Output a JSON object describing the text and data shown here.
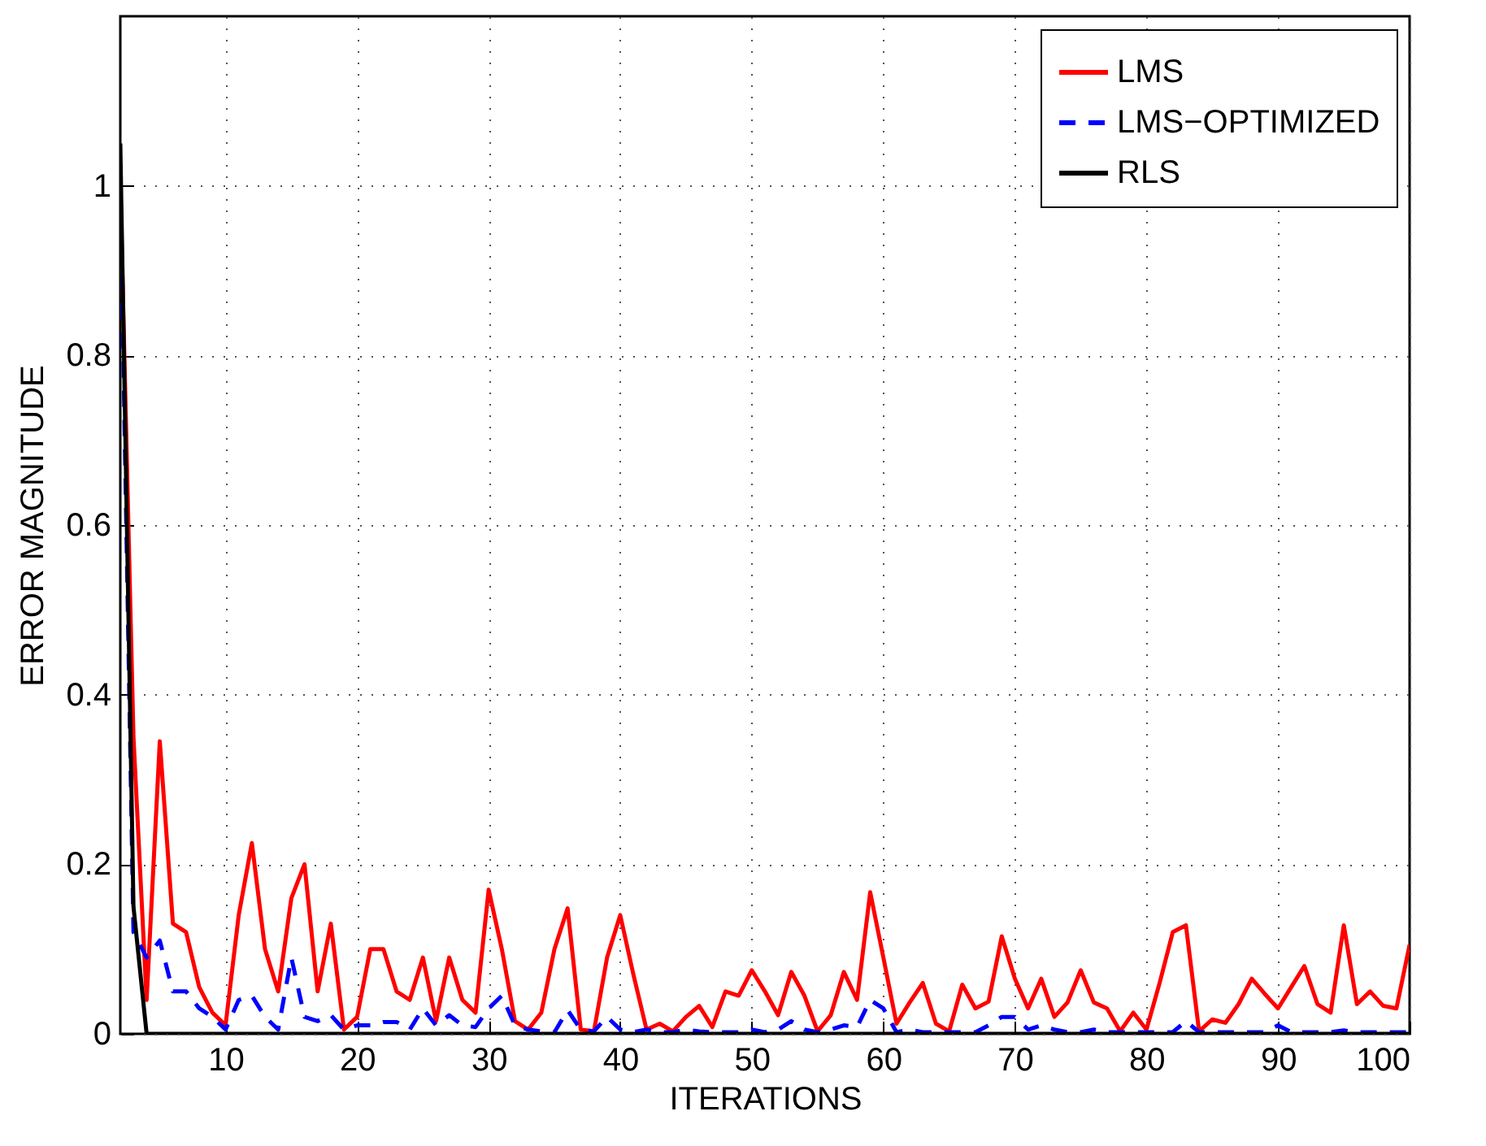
{
  "chart_data": {
    "type": "line",
    "xlabel": "ITERATIONS",
    "ylabel": "ERROR MAGNITUDE",
    "x": [
      2,
      3,
      4,
      5,
      6,
      7,
      8,
      9,
      10,
      11,
      12,
      13,
      14,
      15,
      16,
      17,
      18,
      19,
      20,
      21,
      22,
      23,
      24,
      25,
      26,
      27,
      28,
      29,
      30,
      31,
      32,
      33,
      34,
      35,
      36,
      37,
      38,
      39,
      40,
      41,
      42,
      43,
      44,
      45,
      46,
      47,
      48,
      49,
      50,
      51,
      52,
      53,
      54,
      55,
      56,
      57,
      58,
      59,
      60,
      61,
      62,
      63,
      64,
      65,
      66,
      67,
      68,
      69,
      70,
      71,
      72,
      73,
      74,
      75,
      76,
      77,
      78,
      79,
      80,
      81,
      82,
      83,
      84,
      85,
      86,
      87,
      88,
      89,
      90,
      91,
      92,
      93,
      94,
      95,
      96,
      97,
      98,
      99,
      100
    ],
    "series": [
      {
        "name": "LMS",
        "color": "#ff0000",
        "line_style": "solid",
        "values": [
          1.0,
          0.35,
          0.04,
          0.345,
          0.13,
          0.12,
          0.055,
          0.025,
          0.01,
          0.14,
          0.225,
          0.1,
          0.05,
          0.16,
          0.2,
          0.05,
          0.13,
          0.005,
          0.02,
          0.1,
          0.1,
          0.05,
          0.04,
          0.09,
          0.015,
          0.09,
          0.04,
          0.025,
          0.17,
          0.1,
          0.015,
          0.005,
          0.025,
          0.1,
          0.148,
          0.005,
          0.003,
          0.09,
          0.14,
          0.07,
          0.005,
          0.012,
          0.003,
          0.02,
          0.033,
          0.008,
          0.05,
          0.045,
          0.075,
          0.05,
          0.022,
          0.073,
          0.045,
          0.003,
          0.022,
          0.073,
          0.04,
          0.167,
          0.09,
          0.012,
          0.037,
          0.06,
          0.012,
          0.003,
          0.058,
          0.03,
          0.038,
          0.115,
          0.065,
          0.03,
          0.065,
          0.02,
          0.037,
          0.075,
          0.037,
          0.03,
          0.003,
          0.025,
          0.005,
          0.06,
          0.12,
          0.128,
          0.003,
          0.017,
          0.013,
          0.035,
          0.065,
          0.047,
          0.03,
          0.055,
          0.08,
          0.035,
          0.025,
          0.128,
          0.035,
          0.05,
          0.033,
          0.03,
          0.105
        ]
      },
      {
        "name": "LMS−OPTIMIZED",
        "color": "#0000ff",
        "line_style": "dashed",
        "values": [
          1.0,
          0.12,
          0.09,
          0.11,
          0.05,
          0.05,
          0.03,
          0.02,
          0.005,
          0.04,
          0.045,
          0.02,
          0.005,
          0.09,
          0.02,
          0.015,
          0.022,
          0.005,
          0.01,
          0.01,
          0.014,
          0.014,
          0.005,
          0.03,
          0.01,
          0.022,
          0.01,
          0.008,
          0.03,
          0.045,
          0.01,
          0.005,
          0.003,
          0.002,
          0.028,
          0.005,
          0.003,
          0.02,
          0.005,
          0.002,
          0.005,
          0.002,
          0.002,
          0.005,
          0.003,
          0.002,
          0.002,
          0.002,
          0.005,
          0.002,
          0.005,
          0.015,
          0.005,
          0.002,
          0.005,
          0.01,
          0.008,
          0.04,
          0.03,
          0.002,
          0.005,
          0.002,
          0.002,
          0.002,
          0.002,
          0.002,
          0.01,
          0.02,
          0.02,
          0.005,
          0.01,
          0.005,
          0.002,
          0.002,
          0.005,
          0.002,
          0.002,
          0.002,
          0.002,
          0.002,
          0.002,
          0.015,
          0.002,
          0.002,
          0.002,
          0.002,
          0.002,
          0.002,
          0.01,
          0.002,
          0.002,
          0.002,
          0.002,
          0.004,
          0.002,
          0.002,
          0.002,
          0.002,
          0.002
        ]
      },
      {
        "name": "RLS",
        "color": "#000000",
        "line_style": "solid",
        "values": [
          1.05,
          0.15,
          0,
          0,
          0,
          0,
          0,
          0,
          0,
          0,
          0,
          0,
          0,
          0,
          0,
          0,
          0,
          0,
          0,
          0,
          0,
          0,
          0,
          0,
          0,
          0,
          0,
          0,
          0,
          0,
          0,
          0,
          0,
          0,
          0,
          0,
          0,
          0,
          0,
          0,
          0,
          0,
          0,
          0,
          0,
          0,
          0,
          0,
          0,
          0,
          0,
          0,
          0,
          0,
          0,
          0,
          0,
          0,
          0,
          0,
          0,
          0,
          0,
          0,
          0,
          0,
          0,
          0,
          0,
          0,
          0,
          0,
          0,
          0,
          0,
          0,
          0,
          0,
          0,
          0,
          0,
          0,
          0,
          0,
          0,
          0,
          0,
          0,
          0,
          0,
          0,
          0,
          0,
          0,
          0,
          0,
          0,
          0,
          0
        ]
      }
    ],
    "xlim": [
      2,
      100
    ],
    "xticks": [
      10,
      20,
      30,
      40,
      50,
      60,
      70,
      80,
      90,
      100
    ],
    "ylim": [
      0,
      1.2
    ],
    "yticks": [
      0,
      0.2,
      0.4,
      0.6,
      0.8,
      1
    ],
    "grid": true,
    "legend": "top right",
    "marker": "none"
  }
}
